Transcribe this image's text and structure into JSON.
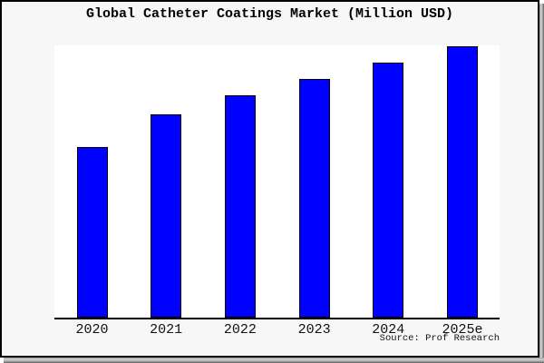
{
  "chart_data": {
    "type": "bar",
    "title": "Global Catheter Coatings Market (Million USD)",
    "categories": [
      "2020",
      "2021",
      "2022",
      "2023",
      "2024",
      "2025e"
    ],
    "values": [
      63,
      75,
      82,
      88,
      94,
      100
    ],
    "xlabel": "",
    "ylabel": "",
    "ylim": [
      0,
      100
    ],
    "grid": false,
    "legend": null,
    "note": "No y-axis ticks or numeric value labels are shown in the figure; values are relative bar heights expressed as percent of the tallest (2025e) bar.",
    "source_label": "Source: Prof Research"
  },
  "colors": {
    "figure_background": "#f7f7f7",
    "plot_background": "#ffffff",
    "bar_fill": "#0000ff",
    "bar_border": "#000000",
    "axis_line": "#000000",
    "text": "#111111",
    "frame_border": "#000000"
  }
}
